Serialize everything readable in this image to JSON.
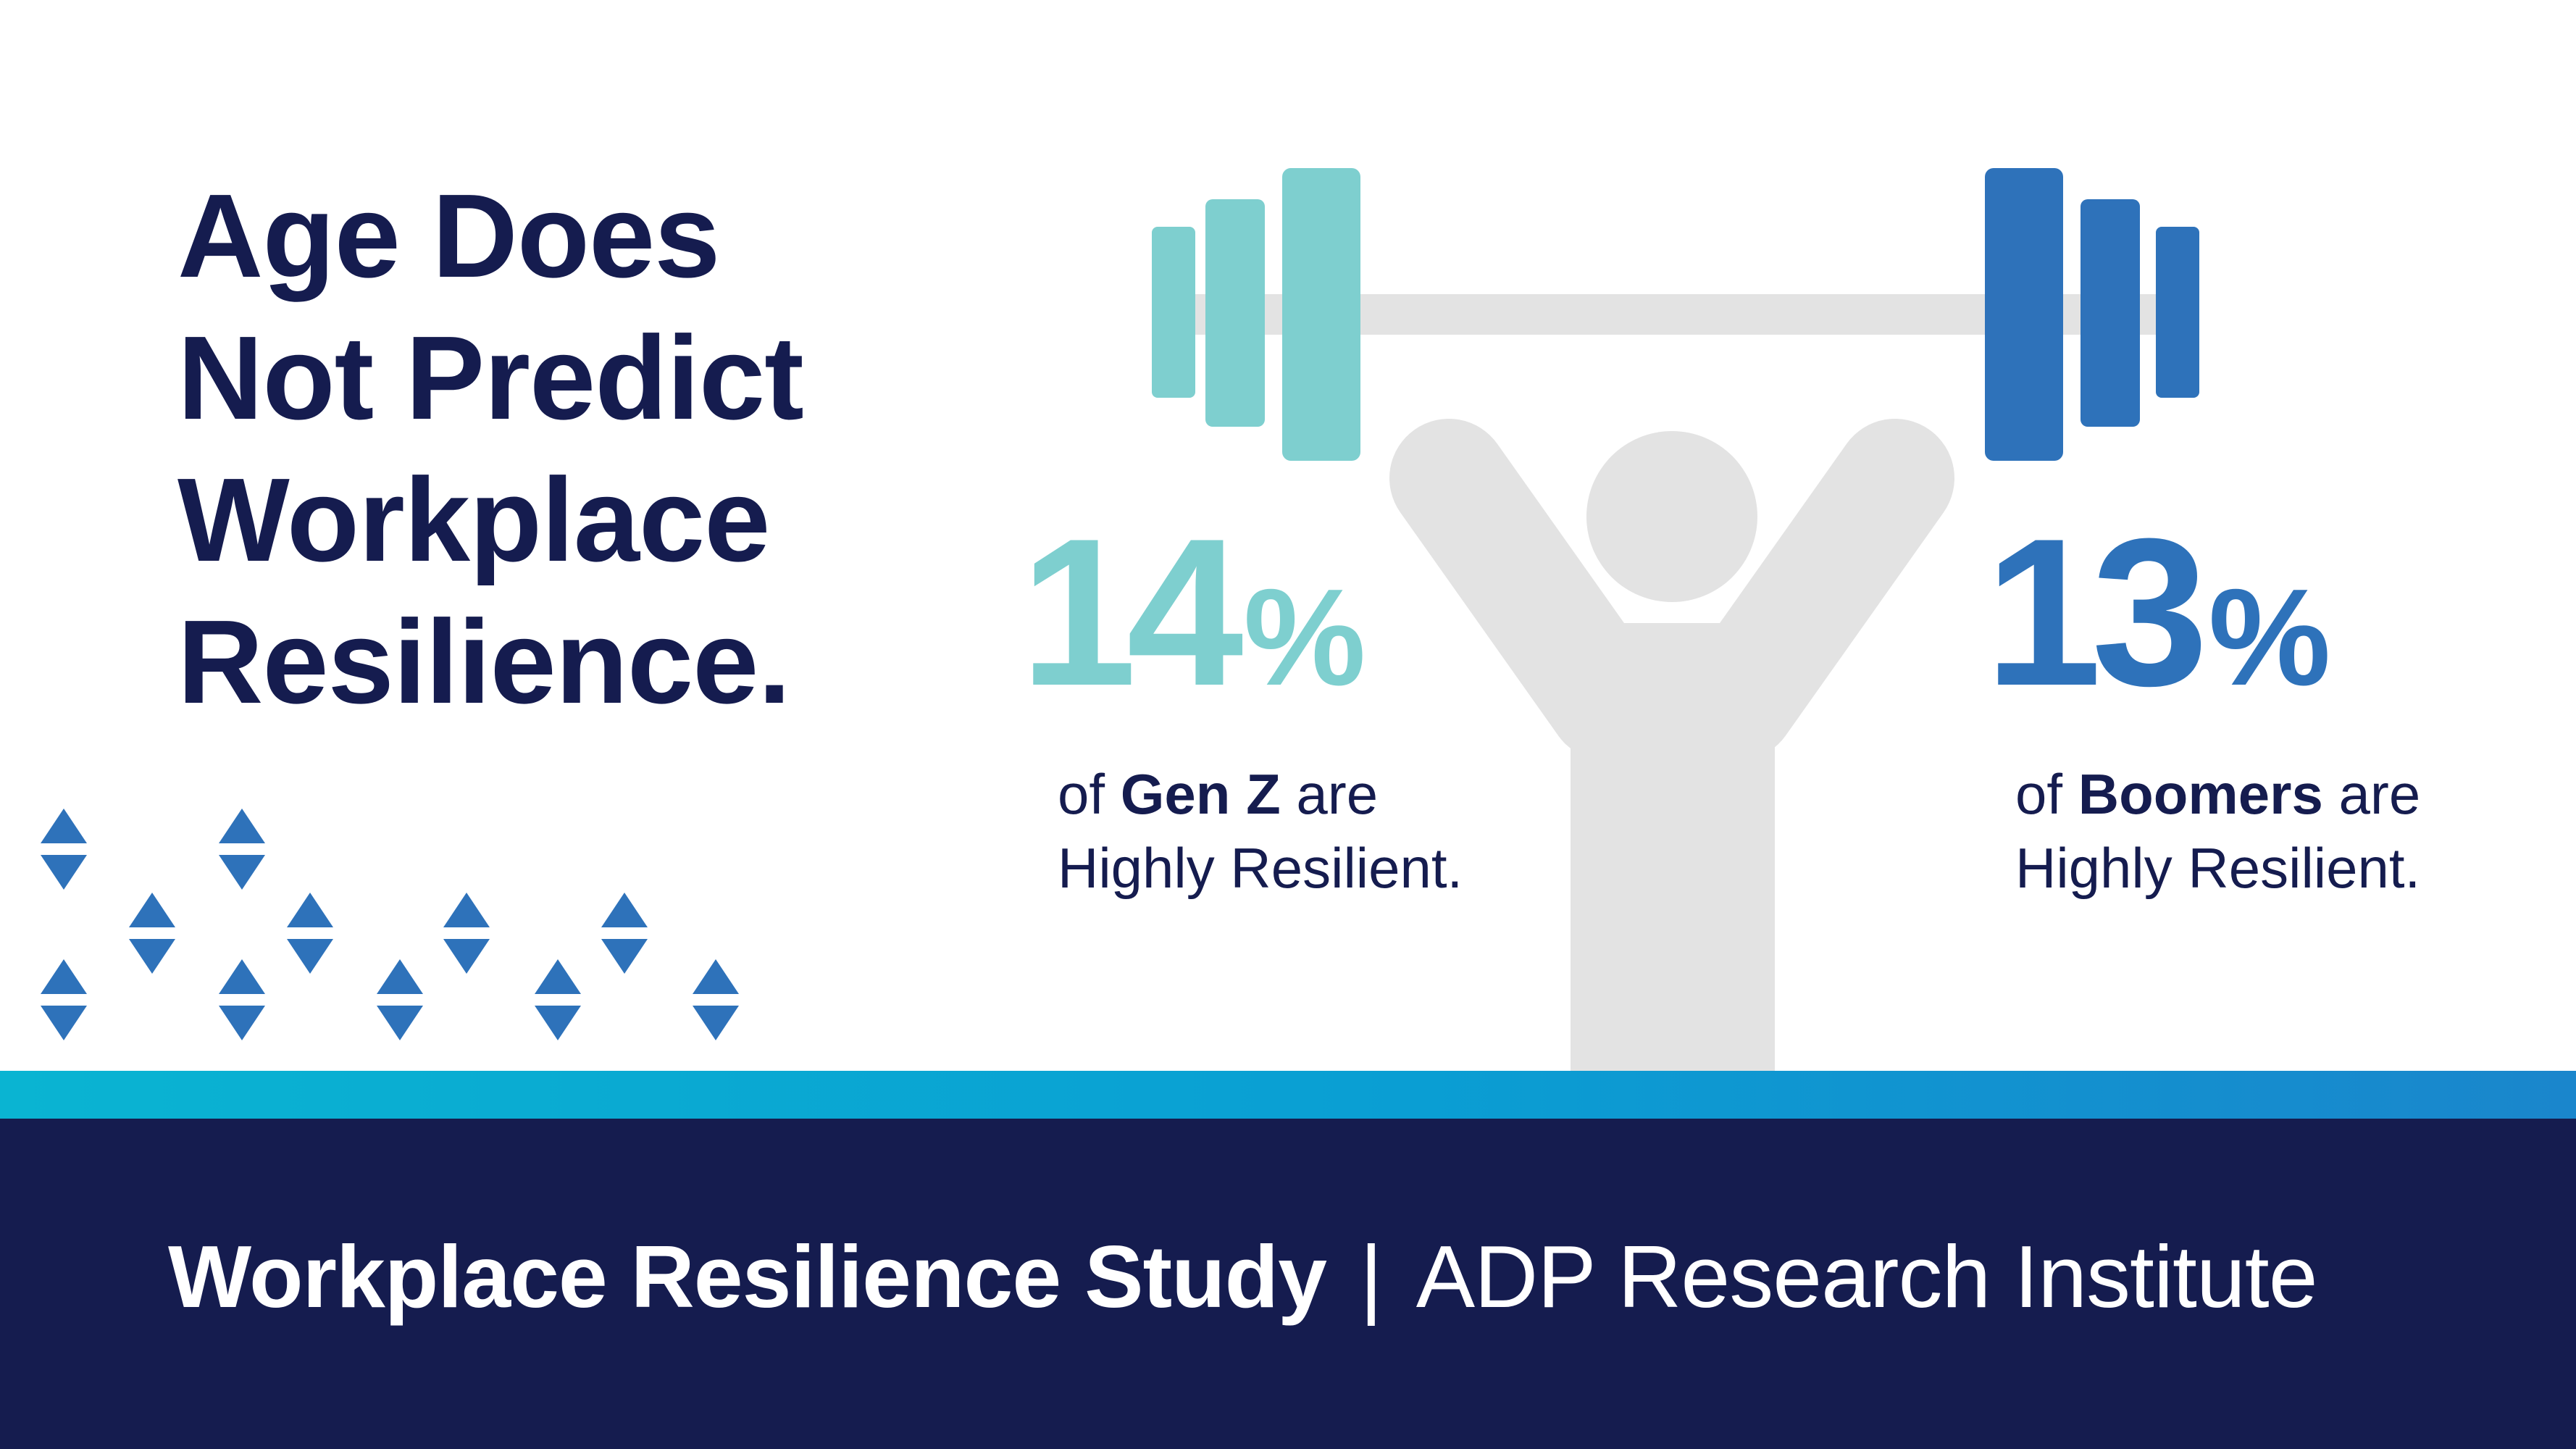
{
  "headline": {
    "lines": [
      "Age Does",
      "Not Predict",
      "Workplace",
      "Resilience."
    ]
  },
  "stats": {
    "genz": {
      "value": "14",
      "unit": "%",
      "caption_pre": "of ",
      "caption_group": "Gen Z",
      "caption_post": " are",
      "caption_line2": "Highly Resilient.",
      "color": "#7ecfcf"
    },
    "boomers": {
      "value": "13",
      "unit": "%",
      "caption_pre": "of ",
      "caption_group": "Boomers",
      "caption_post": " are",
      "caption_line2": "Highly Resilient.",
      "color": "#2e72ba"
    }
  },
  "illustration": {
    "icons": [
      "barbell-icon",
      "weightlifter-figure-icon",
      "up-down-arrow-icon"
    ],
    "colors": {
      "bar": "#e3e3e3",
      "figure": "#e3e3e3",
      "left_plates": "#7ecfcf",
      "right_plates": "#2e72ba",
      "arrows": "#2e72ba"
    }
  },
  "footer": {
    "study": "Workplace Resilience Study",
    "separator": "|",
    "org": "ADP Research Institute",
    "colors": {
      "background": "#151c4f",
      "band": "#0ab4d2",
      "text": "#ffffff"
    }
  }
}
